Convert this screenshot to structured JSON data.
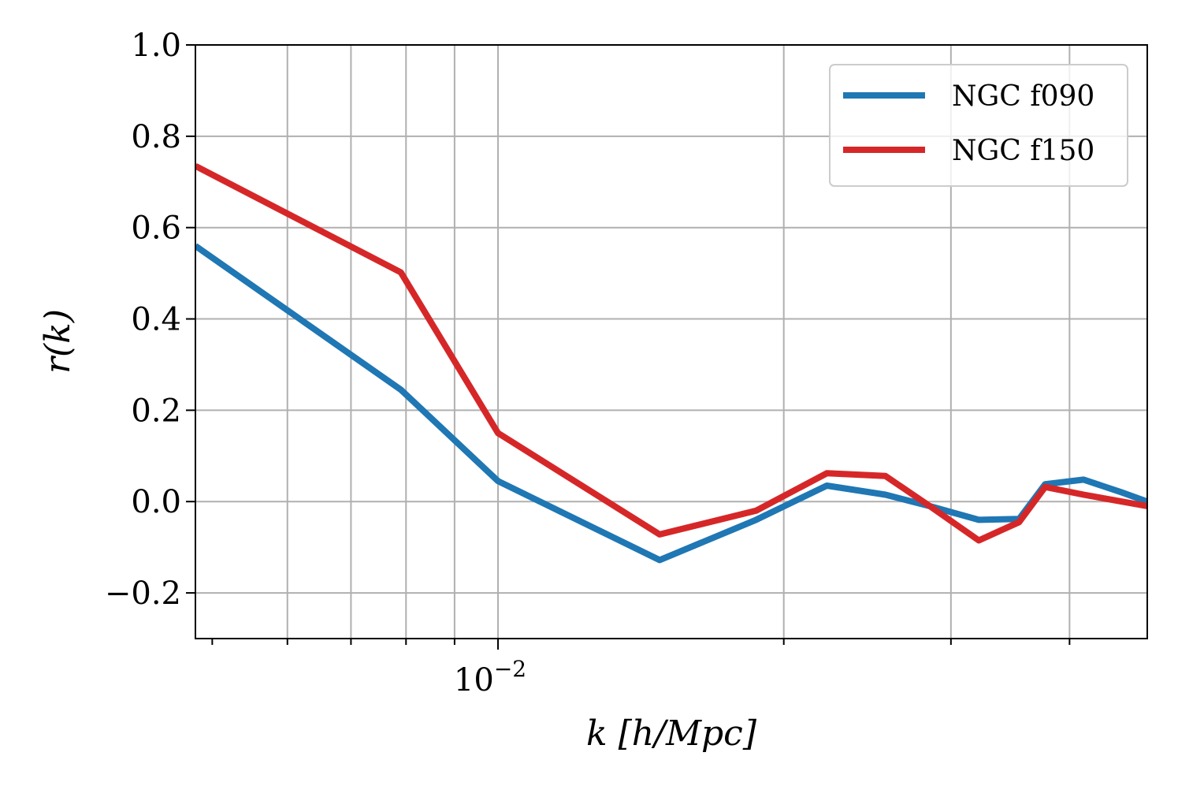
{
  "chart_data": {
    "type": "line",
    "xscale": "log",
    "xlim": [
      0.0048,
      0.0483
    ],
    "ylim": [
      -0.3,
      1.0
    ],
    "grid": true,
    "legend_position": "top-right",
    "xlabel": "k [h/Mpc]",
    "ylabel": "r(k)",
    "xtick_labels": [
      {
        "x": 0.01,
        "base": "10",
        "exponent": "−2"
      }
    ],
    "yticks": [
      -0.2,
      0.0,
      0.2,
      0.4,
      0.6,
      0.8,
      1.0
    ],
    "ytick_labels": [
      "−0.2",
      "0.0",
      "0.2",
      "0.4",
      "0.6",
      "0.8",
      "1.0"
    ],
    "x_gridlines": [
      0.006,
      0.007,
      0.008,
      0.009,
      0.01,
      0.02,
      0.03,
      0.04
    ],
    "series": [
      {
        "name": "NGC f090",
        "color": "#1f77b4",
        "x": [
          0.0048,
          0.0079,
          0.01,
          0.0148,
          0.0187,
          0.0222,
          0.0256,
          0.0285,
          0.0321,
          0.0354,
          0.0377,
          0.0414,
          0.0454,
          0.0483
        ],
        "y": [
          0.56,
          0.245,
          0.045,
          -0.128,
          -0.04,
          0.035,
          0.015,
          -0.01,
          -0.04,
          -0.038,
          0.038,
          0.048,
          0.02,
          0.0
        ]
      },
      {
        "name": "NGC f150",
        "color": "#d62728",
        "x": [
          0.0048,
          0.0079,
          0.01,
          0.0148,
          0.0187,
          0.0222,
          0.0256,
          0.0285,
          0.0321,
          0.0354,
          0.0377,
          0.0414,
          0.0454,
          0.0483
        ],
        "y": [
          0.735,
          0.502,
          0.15,
          -0.072,
          -0.02,
          0.062,
          0.056,
          -0.01,
          -0.085,
          -0.045,
          0.032,
          0.015,
          0.0,
          -0.01
        ]
      }
    ]
  }
}
